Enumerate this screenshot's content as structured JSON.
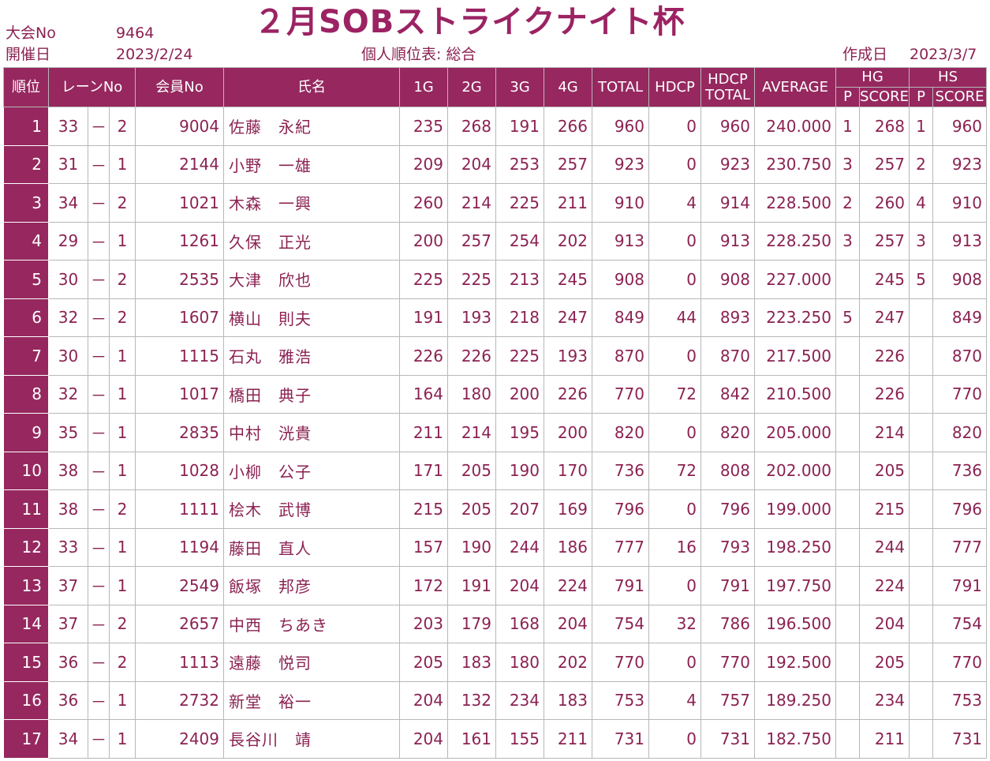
{
  "header": {
    "title": "２月SOBストライクナイト杯",
    "event_no_label": "大会No",
    "event_no": "9464",
    "date_label": "開催日",
    "date": "2023/2/24",
    "table_caption": "個人順位表: 総合",
    "created_label": "作成日",
    "created_date": "2023/3/7"
  },
  "columns": {
    "rank": "順位",
    "lane": "レーンNo",
    "member": "会員No",
    "name": "氏名",
    "g1": "1G",
    "g2": "2G",
    "g3": "3G",
    "g4": "4G",
    "total": "TOTAL",
    "hdcp": "HDCP",
    "hdcp_total_1": "HDCP",
    "hdcp_total_2": "TOTAL",
    "average": "AVERAGE",
    "hg": "HG",
    "hs": "HS",
    "p": "P",
    "score": "SCORE"
  },
  "rows": [
    {
      "rank": "1",
      "lane": "33",
      "dash": "－",
      "pair": "2",
      "member": "9004",
      "name": "佐藤　永紀",
      "g1": "235",
      "g2": "268",
      "g3": "191",
      "g4": "266",
      "total": "960",
      "hdcp": "0",
      "hdcp_total": "960",
      "avg": "240.000",
      "hg_p": "1",
      "hg_score": "268",
      "hs_p": "1",
      "hs_score": "960"
    },
    {
      "rank": "2",
      "lane": "31",
      "dash": "－",
      "pair": "1",
      "member": "2144",
      "name": "小野　一雄",
      "g1": "209",
      "g2": "204",
      "g3": "253",
      "g4": "257",
      "total": "923",
      "hdcp": "0",
      "hdcp_total": "923",
      "avg": "230.750",
      "hg_p": "3",
      "hg_score": "257",
      "hs_p": "2",
      "hs_score": "923"
    },
    {
      "rank": "3",
      "lane": "34",
      "dash": "－",
      "pair": "2",
      "member": "1021",
      "name": "木森　一興",
      "g1": "260",
      "g2": "214",
      "g3": "225",
      "g4": "211",
      "total": "910",
      "hdcp": "4",
      "hdcp_total": "914",
      "avg": "228.500",
      "hg_p": "2",
      "hg_score": "260",
      "hs_p": "4",
      "hs_score": "910"
    },
    {
      "rank": "4",
      "lane": "29",
      "dash": "－",
      "pair": "1",
      "member": "1261",
      "name": "久保　正光",
      "g1": "200",
      "g2": "257",
      "g3": "254",
      "g4": "202",
      "total": "913",
      "hdcp": "0",
      "hdcp_total": "913",
      "avg": "228.250",
      "hg_p": "3",
      "hg_score": "257",
      "hs_p": "3",
      "hs_score": "913"
    },
    {
      "rank": "5",
      "lane": "30",
      "dash": "－",
      "pair": "2",
      "member": "2535",
      "name": "大津　欣也",
      "g1": "225",
      "g2": "225",
      "g3": "213",
      "g4": "245",
      "total": "908",
      "hdcp": "0",
      "hdcp_total": "908",
      "avg": "227.000",
      "hg_p": "",
      "hg_score": "245",
      "hs_p": "5",
      "hs_score": "908"
    },
    {
      "rank": "6",
      "lane": "32",
      "dash": "－",
      "pair": "2",
      "member": "1607",
      "name": "横山　則夫",
      "g1": "191",
      "g2": "193",
      "g3": "218",
      "g4": "247",
      "total": "849",
      "hdcp": "44",
      "hdcp_total": "893",
      "avg": "223.250",
      "hg_p": "5",
      "hg_score": "247",
      "hs_p": "",
      "hs_score": "849"
    },
    {
      "rank": "7",
      "lane": "30",
      "dash": "－",
      "pair": "1",
      "member": "1115",
      "name": "石丸　雅浩",
      "g1": "226",
      "g2": "226",
      "g3": "225",
      "g4": "193",
      "total": "870",
      "hdcp": "0",
      "hdcp_total": "870",
      "avg": "217.500",
      "hg_p": "",
      "hg_score": "226",
      "hs_p": "",
      "hs_score": "870"
    },
    {
      "rank": "8",
      "lane": "32",
      "dash": "－",
      "pair": "1",
      "member": "1017",
      "name": "橋田　典子",
      "g1": "164",
      "g2": "180",
      "g3": "200",
      "g4": "226",
      "total": "770",
      "hdcp": "72",
      "hdcp_total": "842",
      "avg": "210.500",
      "hg_p": "",
      "hg_score": "226",
      "hs_p": "",
      "hs_score": "770"
    },
    {
      "rank": "9",
      "lane": "35",
      "dash": "－",
      "pair": "1",
      "member": "2835",
      "name": "中村　洸貴",
      "g1": "211",
      "g2": "214",
      "g3": "195",
      "g4": "200",
      "total": "820",
      "hdcp": "0",
      "hdcp_total": "820",
      "avg": "205.000",
      "hg_p": "",
      "hg_score": "214",
      "hs_p": "",
      "hs_score": "820"
    },
    {
      "rank": "10",
      "lane": "38",
      "dash": "－",
      "pair": "1",
      "member": "1028",
      "name": "小柳　公子",
      "g1": "171",
      "g2": "205",
      "g3": "190",
      "g4": "170",
      "total": "736",
      "hdcp": "72",
      "hdcp_total": "808",
      "avg": "202.000",
      "hg_p": "",
      "hg_score": "205",
      "hs_p": "",
      "hs_score": "736"
    },
    {
      "rank": "11",
      "lane": "38",
      "dash": "－",
      "pair": "2",
      "member": "1111",
      "name": "桧木　武博",
      "g1": "215",
      "g2": "205",
      "g3": "207",
      "g4": "169",
      "total": "796",
      "hdcp": "0",
      "hdcp_total": "796",
      "avg": "199.000",
      "hg_p": "",
      "hg_score": "215",
      "hs_p": "",
      "hs_score": "796"
    },
    {
      "rank": "12",
      "lane": "33",
      "dash": "－",
      "pair": "1",
      "member": "1194",
      "name": "藤田　直人",
      "g1": "157",
      "g2": "190",
      "g3": "244",
      "g4": "186",
      "total": "777",
      "hdcp": "16",
      "hdcp_total": "793",
      "avg": "198.250",
      "hg_p": "",
      "hg_score": "244",
      "hs_p": "",
      "hs_score": "777"
    },
    {
      "rank": "13",
      "lane": "37",
      "dash": "－",
      "pair": "1",
      "member": "2549",
      "name": "飯塚　邦彦",
      "g1": "172",
      "g2": "191",
      "g3": "204",
      "g4": "224",
      "total": "791",
      "hdcp": "0",
      "hdcp_total": "791",
      "avg": "197.750",
      "hg_p": "",
      "hg_score": "224",
      "hs_p": "",
      "hs_score": "791"
    },
    {
      "rank": "14",
      "lane": "37",
      "dash": "－",
      "pair": "2",
      "member": "2657",
      "name": "中西　ちあき",
      "g1": "203",
      "g2": "179",
      "g3": "168",
      "g4": "204",
      "total": "754",
      "hdcp": "32",
      "hdcp_total": "786",
      "avg": "196.500",
      "hg_p": "",
      "hg_score": "204",
      "hs_p": "",
      "hs_score": "754"
    },
    {
      "rank": "15",
      "lane": "36",
      "dash": "－",
      "pair": "2",
      "member": "1113",
      "name": "遠藤　悦司",
      "g1": "205",
      "g2": "183",
      "g3": "180",
      "g4": "202",
      "total": "770",
      "hdcp": "0",
      "hdcp_total": "770",
      "avg": "192.500",
      "hg_p": "",
      "hg_score": "205",
      "hs_p": "",
      "hs_score": "770"
    },
    {
      "rank": "16",
      "lane": "36",
      "dash": "－",
      "pair": "1",
      "member": "2732",
      "name": "新堂　裕一",
      "g1": "204",
      "g2": "132",
      "g3": "234",
      "g4": "183",
      "total": "753",
      "hdcp": "4",
      "hdcp_total": "757",
      "avg": "189.250",
      "hg_p": "",
      "hg_score": "234",
      "hs_p": "",
      "hs_score": "753"
    },
    {
      "rank": "17",
      "lane": "34",
      "dash": "－",
      "pair": "1",
      "member": "2409",
      "name": "長谷川　靖",
      "g1": "204",
      "g2": "161",
      "g3": "155",
      "g4": "211",
      "total": "731",
      "hdcp": "0",
      "hdcp_total": "731",
      "avg": "182.750",
      "hg_p": "",
      "hg_score": "211",
      "hs_p": "",
      "hs_score": "731"
    }
  ]
}
